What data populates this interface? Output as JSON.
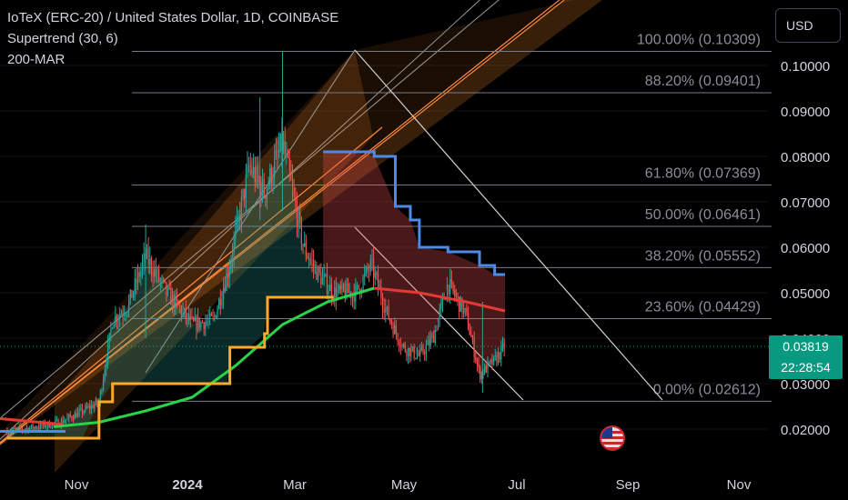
{
  "legend": {
    "title": "IoTeX (ERC-20) / United States Dollar, 1D, COINBASE",
    "indicator1": "Supertrend (30, 6)",
    "indicator2": "200-MAR"
  },
  "currency_button": "USD",
  "last_price": {
    "price": "0.03819",
    "countdown": "22:28:54"
  },
  "colors": {
    "background": "#000000",
    "up": "#26a69a",
    "down": "#ef5350",
    "supertrend_up": "#ffa726",
    "supertrend_down": "#4d8ae8",
    "ma_up": "#28d34a",
    "ma_down": "#e53935",
    "fib": "#787b86",
    "gann": "#ff8a3d"
  },
  "chart_data": {
    "type": "candlestick",
    "title": "IoTeX (ERC-20) / United States Dollar, 1D, COINBASE",
    "yaxis_ticks": [
      "0.10000",
      "0.09000",
      "0.08000",
      "0.07000",
      "0.06000",
      "0.05000",
      "0.04000",
      "0.03000",
      "0.02000"
    ],
    "xaxis_ticks": [
      "Nov",
      "2024",
      "Mar",
      "May",
      "Jul",
      "Sep",
      "Nov"
    ],
    "fibonacci_levels": [
      {
        "label": "100.00% (0.10309)",
        "value": 0.10309
      },
      {
        "label": "88.20% (0.09401)",
        "value": 0.09401
      },
      {
        "label": "61.80% (0.07369)",
        "value": 0.07369
      },
      {
        "label": "50.00% (0.06461)",
        "value": 0.06461
      },
      {
        "label": "38.20% (0.05552)",
        "value": 0.05552
      },
      {
        "label": "23.60% (0.04429)",
        "value": 0.04429
      },
      {
        "label": "0.00% (0.02612)",
        "value": 0.02612
      }
    ],
    "price_trend": [
      [
        "2023-10-01",
        0.0195
      ],
      [
        "2023-10-20",
        0.0205
      ],
      [
        "2023-11-05",
        0.0215
      ],
      [
        "2023-11-20",
        0.024
      ],
      [
        "2023-12-01",
        0.026
      ],
      [
        "2023-12-10",
        0.044
      ],
      [
        "2023-12-20",
        0.047
      ],
      [
        "2024-01-01",
        0.058
      ],
      [
        "2024-01-15",
        0.05
      ],
      [
        "2024-02-01",
        0.043
      ],
      [
        "2024-02-15",
        0.044
      ],
      [
        "2024-02-25",
        0.055
      ],
      [
        "2024-03-10",
        0.078
      ],
      [
        "2024-03-20",
        0.072
      ],
      [
        "2024-04-01",
        0.083
      ],
      [
        "2024-04-10",
        0.068
      ],
      [
        "2024-04-15",
        0.06
      ],
      [
        "2024-04-25",
        0.054
      ],
      [
        "2024-05-05",
        0.05
      ],
      [
        "2024-05-20",
        0.05
      ],
      [
        "2024-05-30",
        0.056
      ],
      [
        "2024-06-10",
        0.045
      ],
      [
        "2024-06-20",
        0.038
      ],
      [
        "2024-07-01",
        0.036
      ],
      [
        "2024-07-10",
        0.04
      ],
      [
        "2024-07-20",
        0.052
      ],
      [
        "2024-08-01",
        0.045
      ],
      [
        "2024-08-10",
        0.032
      ],
      [
        "2024-08-20",
        0.035
      ],
      [
        "2024-08-27",
        0.0382
      ]
    ],
    "supertrend_support": [
      [
        "2023-10-01",
        0.018
      ],
      [
        "2023-11-20",
        0.018
      ],
      [
        "2023-12-01",
        0.026
      ],
      [
        "2023-12-10",
        0.03
      ],
      [
        "2024-02-25",
        0.03
      ],
      [
        "2024-02-26",
        0.038
      ],
      [
        "2024-03-10",
        0.038
      ],
      [
        "2024-03-20",
        0.041
      ],
      [
        "2024-03-22",
        0.049
      ],
      [
        "2024-05-05",
        0.049
      ]
    ],
    "supertrend_resistance": [
      [
        "2024-04-28",
        0.081
      ],
      [
        "2024-05-15",
        0.081
      ],
      [
        "2024-06-01",
        0.08
      ],
      [
        "2024-06-15",
        0.069
      ],
      [
        "2024-06-25",
        0.066
      ],
      [
        "2024-07-01",
        0.06
      ],
      [
        "2024-07-20",
        0.059
      ],
      [
        "2024-08-10",
        0.056
      ],
      [
        "2024-08-20",
        0.054
      ],
      [
        "2024-08-27",
        0.054
      ]
    ],
    "moving_average_200": [
      [
        "2023-10-01",
        0.022
      ],
      [
        "2023-11-01",
        0.0205
      ],
      [
        "2023-12-01",
        0.0215
      ],
      [
        "2024-01-01",
        0.024
      ],
      [
        "2024-02-01",
        0.027
      ],
      [
        "2024-03-01",
        0.034
      ],
      [
        "2024-04-01",
        0.043
      ],
      [
        "2024-05-01",
        0.048
      ],
      [
        "2024-06-01",
        0.051
      ],
      [
        "2024-07-01",
        0.05
      ],
      [
        "2024-08-01",
        0.048
      ],
      [
        "2024-08-27",
        0.046
      ]
    ],
    "ma_color_switch": "2024-06-01"
  }
}
